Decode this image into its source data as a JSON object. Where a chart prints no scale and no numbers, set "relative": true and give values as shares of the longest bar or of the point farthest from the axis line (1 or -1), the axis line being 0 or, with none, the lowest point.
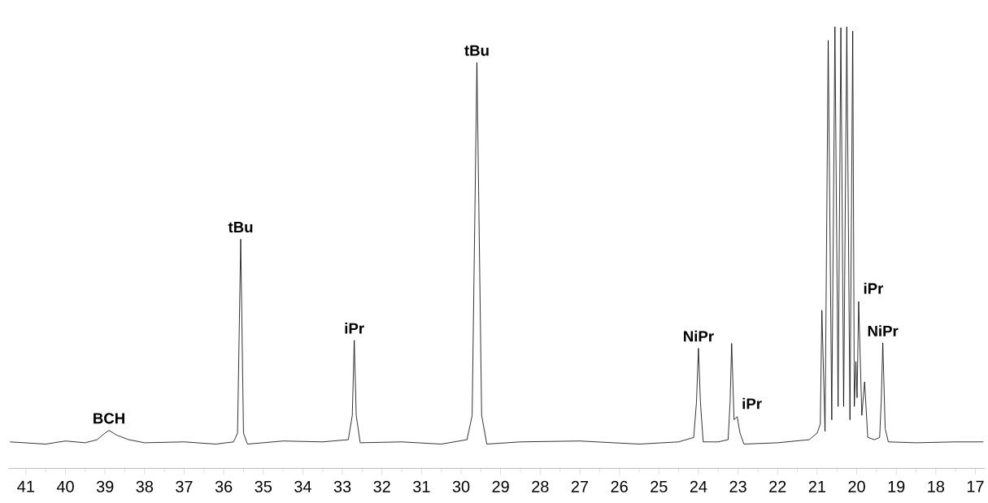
{
  "chart_data": {
    "type": "line",
    "relative": true,
    "color": "#000000",
    "x": [
      41.4,
      40.5,
      40.0,
      39.5,
      39.2,
      39.0,
      38.9,
      38.7,
      38.4,
      38.0,
      37.0,
      36.2,
      35.75,
      35.65,
      35.57,
      35.5,
      35.4,
      34.5,
      33.5,
      32.85,
      32.75,
      32.7,
      32.65,
      32.55,
      31.5,
      30.5,
      29.85,
      29.72,
      29.6,
      29.48,
      29.35,
      28.5,
      27.0,
      25.5,
      24.5,
      24.12,
      24.05,
      24.0,
      23.95,
      23.88,
      23.5,
      23.25,
      23.2,
      23.16,
      23.1,
      23.02,
      22.95,
      22.85,
      22.0,
      21.2,
      21.0,
      20.92,
      20.88,
      20.8,
      20.72,
      20.63,
      20.55,
      20.47,
      20.4,
      20.33,
      20.25,
      20.17,
      20.1,
      20.06,
      20.02,
      19.99,
      19.95,
      19.87,
      19.8,
      19.72,
      19.55,
      19.42,
      19.38,
      19.34,
      19.28,
      19.2,
      18.5,
      17.5,
      16.8
    ],
    "values": [
      0.06,
      0.055,
      0.062,
      0.058,
      0.065,
      0.08,
      0.086,
      0.075,
      0.065,
      0.058,
      0.06,
      0.055,
      0.06,
      0.08,
      0.519,
      0.08,
      0.055,
      0.062,
      0.06,
      0.065,
      0.12,
      0.29,
      0.12,
      0.058,
      0.06,
      0.055,
      0.065,
      0.12,
      0.919,
      0.12,
      0.055,
      0.06,
      0.062,
      0.055,
      0.06,
      0.07,
      0.15,
      0.272,
      0.15,
      0.06,
      0.06,
      0.065,
      0.15,
      0.283,
      0.11,
      0.117,
      0.08,
      0.055,
      0.058,
      0.065,
      0.08,
      0.1,
      0.358,
      0.084,
      0.969,
      0.11,
      1.0,
      0.14,
      0.998,
      0.14,
      1.0,
      0.11,
      0.99,
      0.14,
      0.242,
      0.16,
      0.378,
      0.12,
      0.196,
      0.07,
      0.065,
      0.07,
      0.15,
      0.284,
      0.09,
      0.06,
      0.058,
      0.06,
      0.06
    ],
    "xlim": [
      41.45,
      16.75
    ],
    "xticks": [
      41,
      40,
      39,
      38,
      37,
      36,
      35,
      34,
      33,
      32,
      31,
      30,
      29,
      28,
      27,
      26,
      25,
      24,
      23,
      22,
      21,
      20,
      19,
      18,
      17
    ],
    "annotations": [
      {
        "text": "BCH",
        "x": 38.9,
        "y": 0.086
      },
      {
        "text": "tBu",
        "x": 35.57,
        "y": 0.519
      },
      {
        "text": "iPr",
        "x": 32.7,
        "y": 0.29
      },
      {
        "text": "tBu",
        "x": 29.6,
        "y": 0.919
      },
      {
        "text": "NiPr",
        "x": 24.0,
        "y": 0.272
      },
      {
        "text": "iPr",
        "x": 23.02,
        "y": 0.117
      },
      {
        "text": "iPr",
        "x": 19.95,
        "y": 0.378
      },
      {
        "text": "NiPr",
        "x": 19.34,
        "y": 0.284
      }
    ]
  }
}
